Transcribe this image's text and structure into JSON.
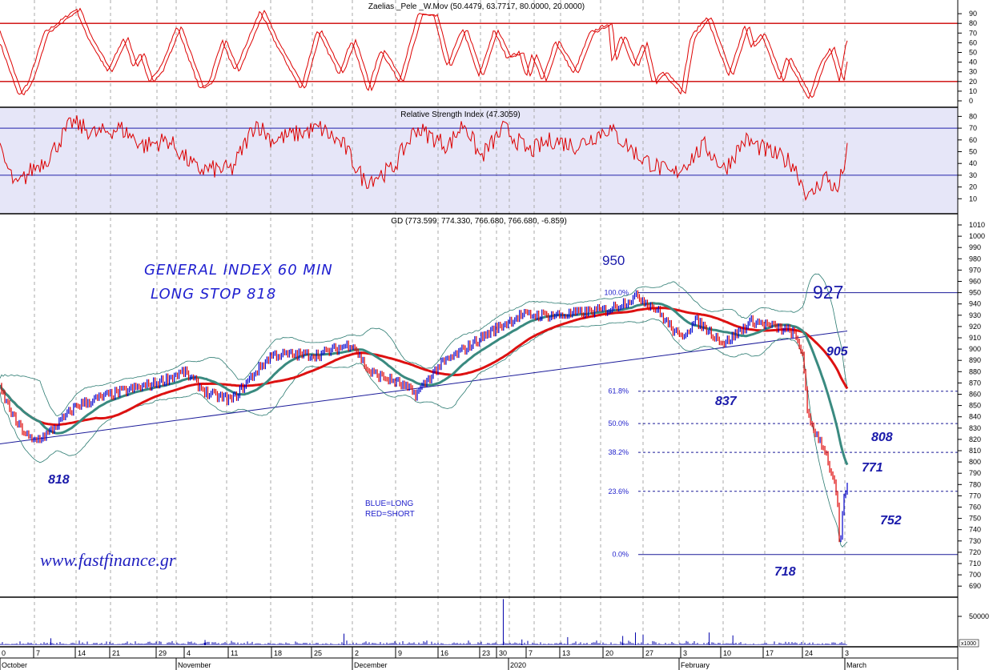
{
  "chart_data": [
    {
      "type": "line",
      "title": "Zaelias _Pele _W.Mov (50.4479, 63.7717, 80.0000, 20.0000)",
      "ylim": [
        -5,
        100
      ],
      "yticks": [
        "90",
        "80",
        "70",
        "60",
        "50",
        "40",
        "30",
        "20",
        "10",
        "0"
      ],
      "levels": [
        80,
        20
      ],
      "series": [
        {
          "name": "stochastic",
          "points": [
            [
              0,
              60
            ],
            [
              2.2,
              5
            ],
            [
              3.4,
              20
            ],
            [
              5.2,
              70
            ],
            [
              6,
              75
            ],
            [
              9,
              95
            ],
            [
              10.1,
              70
            ],
            [
              12.7,
              30
            ],
            [
              14.6,
              65
            ],
            [
              15.7,
              35
            ],
            [
              16.5,
              50
            ],
            [
              17.6,
              20
            ],
            [
              18.7,
              30
            ],
            [
              20.9,
              77
            ],
            [
              23.6,
              12
            ],
            [
              24.7,
              20
            ],
            [
              26.2,
              63
            ],
            [
              27.7,
              30
            ],
            [
              30.7,
              93
            ],
            [
              32.2,
              65
            ],
            [
              35.5,
              12
            ],
            [
              37.4,
              73
            ],
            [
              40,
              28
            ],
            [
              41.5,
              63
            ],
            [
              43.4,
              10
            ],
            [
              44.9,
              53
            ],
            [
              47.1,
              20
            ],
            [
              49.4,
              90
            ],
            [
              51.2,
              88
            ],
            [
              52.7,
              35
            ],
            [
              54.6,
              75
            ],
            [
              56.5,
              25
            ],
            [
              58.3,
              73
            ],
            [
              59.8,
              45
            ],
            [
              61.3,
              50
            ],
            [
              62.1,
              25
            ],
            [
              62.8,
              48
            ],
            [
              64,
              20
            ],
            [
              65.5,
              62
            ],
            [
              67.7,
              28
            ],
            [
              69.6,
              70
            ],
            [
              71.8,
              80
            ],
            [
              72.2,
              40
            ],
            [
              73.3,
              68
            ],
            [
              74.8,
              35
            ],
            [
              75.9,
              60
            ],
            [
              77,
              18
            ],
            [
              78.2,
              30
            ],
            [
              80.4,
              8
            ],
            [
              81.5,
              65
            ],
            [
              83.4,
              87
            ],
            [
              86,
              25
            ],
            [
              87.9,
              78
            ],
            [
              88.6,
              55
            ],
            [
              89.8,
              70
            ],
            [
              92,
              20
            ],
            [
              92.8,
              45
            ],
            [
              95.4,
              2
            ],
            [
              96.9,
              40
            ],
            [
              98,
              55
            ],
            [
              99.1,
              20
            ],
            [
              99.9,
              63
            ]
          ]
        }
      ]
    },
    {
      "type": "line",
      "title": "Relative Strength Index (47.3059)",
      "ylim": [
        0,
        90
      ],
      "yticks": [
        "80",
        "70",
        "60",
        "50",
        "40",
        "30",
        "20",
        "10"
      ],
      "levels": [
        70,
        30
      ],
      "series": [
        {
          "name": "rsi",
          "points": [
            [
              0,
              50
            ],
            [
              1.9,
              20
            ],
            [
              3.8,
              35
            ],
            [
              5.7,
              45
            ],
            [
              8.5,
              75
            ],
            [
              11.3,
              65
            ],
            [
              14.2,
              70
            ],
            [
              17,
              55
            ],
            [
              19.8,
              60
            ],
            [
              23.2,
              35
            ],
            [
              27.4,
              35
            ],
            [
              30.2,
              75
            ],
            [
              32.1,
              60
            ],
            [
              35,
              65
            ],
            [
              37.8,
              70
            ],
            [
              40.6,
              55
            ],
            [
              43,
              25
            ],
            [
              46.3,
              35
            ],
            [
              49.1,
              70
            ],
            [
              52.9,
              55
            ],
            [
              54.8,
              75
            ],
            [
              56.7,
              45
            ],
            [
              59.5,
              70
            ],
            [
              62.4,
              50
            ],
            [
              65.2,
              60
            ],
            [
              68.1,
              55
            ],
            [
              71.8,
              70
            ],
            [
              75.6,
              45
            ],
            [
              79.4,
              30
            ],
            [
              83.2,
              55
            ],
            [
              85.5,
              35
            ],
            [
              87.9,
              60
            ],
            [
              90.7,
              50
            ],
            [
              93.6,
              40
            ],
            [
              95.5,
              10
            ],
            [
              97.4,
              30
            ],
            [
              98.8,
              15
            ],
            [
              100,
              50
            ]
          ]
        }
      ]
    },
    {
      "type": "line",
      "title": "GD (773.599, 774.330, 766.680, 766.680, -6.859)",
      "ylim": [
        680,
        1020
      ],
      "yticks": [
        "1010",
        "1000",
        "990",
        "980",
        "970",
        "960",
        "950",
        "940",
        "930",
        "920",
        "910",
        "900",
        "890",
        "880",
        "870",
        "860",
        "850",
        "840",
        "830",
        "820",
        "810",
        "800",
        "790",
        "780",
        "770",
        "760",
        "750",
        "740",
        "730",
        "720",
        "710",
        "700",
        "690"
      ],
      "series": [
        {
          "name": "GD price",
          "points": [
            [
              0,
              865
            ],
            [
              1.9,
              835
            ],
            [
              3.8,
              818
            ],
            [
              5.7,
              825
            ],
            [
              9,
              850
            ],
            [
              13.2,
              860
            ],
            [
              18.5,
              870
            ],
            [
              21.7,
              880
            ],
            [
              24.6,
              860
            ],
            [
              27.4,
              855
            ],
            [
              30.2,
              880
            ],
            [
              32.1,
              895
            ],
            [
              37.6,
              895
            ],
            [
              41.6,
              905
            ],
            [
              43.5,
              880
            ],
            [
              47,
              870
            ],
            [
              49.1,
              860
            ],
            [
              51.8,
              885
            ],
            [
              55.8,
              905
            ],
            [
              57.8,
              915
            ],
            [
              61.4,
              930
            ],
            [
              66.2,
              930
            ],
            [
              71.8,
              935
            ],
            [
              75.3,
              947
            ],
            [
              77.5,
              935
            ],
            [
              80.2,
              910
            ],
            [
              82.2,
              925
            ],
            [
              85.5,
              905
            ],
            [
              88.8,
              925
            ],
            [
              93.6,
              915
            ],
            [
              94.8,
              895
            ],
            [
              95.3,
              840
            ],
            [
              97.4,
              810
            ],
            [
              98.8,
              770
            ],
            [
              99.1,
              720
            ],
            [
              99.7,
              775
            ],
            [
              100,
              777
            ]
          ]
        }
      ],
      "fibonacci": [
        {
          "label": "100.0%",
          "value": 950
        },
        {
          "label": "61.8%",
          "value": 862.7
        },
        {
          "label": "50.0%",
          "value": 834
        },
        {
          "label": "38.2%",
          "value": 808.5
        },
        {
          "label": "23.6%",
          "value": 774
        },
        {
          "label": "0.0%",
          "value": 718
        }
      ],
      "trendline": [
        [
          0,
          816
        ],
        [
          100,
          916
        ]
      ],
      "annotations": {
        "title_line1": "GENERAL INDEX 60 MIN",
        "title_line2": "LONG STOP 818",
        "a950": "950",
        "a927": "927",
        "a905": "905",
        "a837": "837",
        "a808": "808",
        "a771": "771",
        "a752": "752",
        "a718": "718",
        "a818": "818",
        "legend_long": "BLUE=LONG",
        "legend_short": "RED=SHORT",
        "website": "www.fastfinance.gr"
      }
    },
    {
      "type": "bar",
      "title": "Volume",
      "yticks": [
        "50000"
      ],
      "unit": "x1000",
      "spikes": [
        [
          6,
          12000
        ],
        [
          24.2,
          9000
        ],
        [
          40.6,
          20000
        ],
        [
          59.4,
          80000
        ],
        [
          61.6,
          10000
        ],
        [
          67,
          14000
        ],
        [
          73.5,
          16000
        ],
        [
          75,
          22000
        ],
        [
          75.9,
          18000
        ],
        [
          83.7,
          22000
        ],
        [
          86.5,
          17000
        ]
      ]
    }
  ],
  "xaxis": {
    "days": [
      "0",
      "7",
      "14",
      "21",
      "29",
      "4",
      "11",
      "18",
      "25",
      "2",
      "9",
      "16",
      "23",
      "30",
      "7",
      "13",
      "20",
      "27",
      "3",
      "10",
      "17",
      "24",
      "3"
    ],
    "months": [
      "October",
      "November",
      "December",
      "2020",
      "February",
      "March"
    ]
  },
  "colors": {
    "stoch": "#dd0000",
    "rsi": "#dd0000",
    "rsi_bg": "#e6e6f8",
    "long": "#0000cc",
    "short": "#dd0000",
    "ma_fast": "#3a8a80",
    "ma_slow": "#dd1111",
    "band": "#2a7a70"
  }
}
